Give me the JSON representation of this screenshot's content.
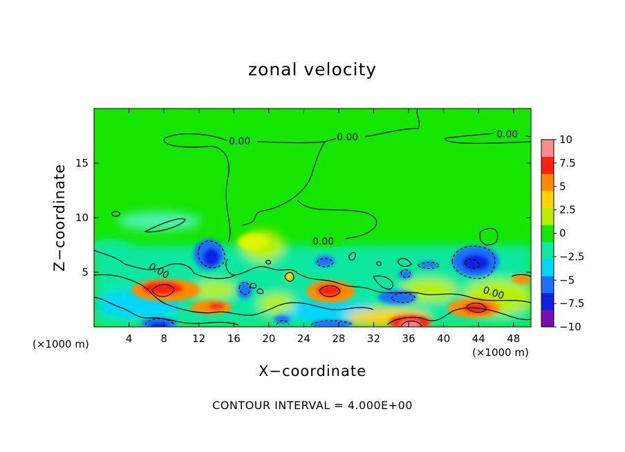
{
  "chart_data": {
    "type": "heatmap",
    "title": "zonal velocity",
    "xlabel": "X−coordinate",
    "ylabel": "Z−coordinate",
    "x_unit_label": "(×1000 m)",
    "y_unit_label": "(×1000 m)",
    "footer": "CONTOUR INTERVAL = 4.000E+00",
    "xlim": [
      0,
      50
    ],
    "ylim": [
      0,
      20
    ],
    "x_ticks": [
      4,
      8,
      12,
      16,
      20,
      24,
      28,
      32,
      36,
      40,
      44,
      48
    ],
    "y_ticks": [
      5,
      10,
      15
    ],
    "colorbar": {
      "range": [
        -10,
        10
      ],
      "ticks": [
        10,
        7.5,
        5,
        2.5,
        0,
        -2.5,
        -5,
        -7.5,
        -10
      ],
      "tick_labels": [
        "10",
        "7.5",
        "5",
        "2.5",
        "0",
        "−2.5",
        "−5",
        "−7.5",
        "−10"
      ],
      "colors": [
        "#7a0fb0",
        "#1020e0",
        "#1a70ff",
        "#00d6ff",
        "#10e8a0",
        "#14e600",
        "#b8f000",
        "#ffd200",
        "#ff8c00",
        "#ff2010",
        "#ff8c8c"
      ]
    },
    "contour_labels": [
      "0.00",
      "0.00",
      "0.00",
      "0.00",
      "0.00",
      "0.00"
    ],
    "features": [
      {
        "x": 8.5,
        "z": 3.2,
        "value": 7.5
      },
      {
        "x": 13.5,
        "z": 1.6,
        "value": 6
      },
      {
        "x": 26.5,
        "z": 3.2,
        "value": 8
      },
      {
        "x": 36,
        "z": 0.4,
        "value": 9.5
      },
      {
        "x": 44.5,
        "z": 1.8,
        "value": 8
      },
      {
        "x": 48.5,
        "z": 4.5,
        "value": 5
      },
      {
        "x": 13,
        "z": 6.6,
        "value": -6
      },
      {
        "x": 43.5,
        "z": 5.8,
        "value": -7.5
      },
      {
        "x": 8,
        "z": 0.3,
        "value": -6.5
      },
      {
        "x": 26,
        "z": 0.3,
        "value": -6
      },
      {
        "x": 18,
        "z": 3.2,
        "value": -3
      },
      {
        "x": 35.5,
        "z": 2.6,
        "value": -4
      },
      {
        "x": 26,
        "z": 5.7,
        "value": -4
      },
      {
        "x": 35,
        "z": 4.8,
        "value": -3.5
      },
      {
        "x": 5,
        "z": 8.5,
        "value": -1.5
      },
      {
        "x": 19,
        "z": 7.8,
        "value": 2.5
      }
    ]
  }
}
